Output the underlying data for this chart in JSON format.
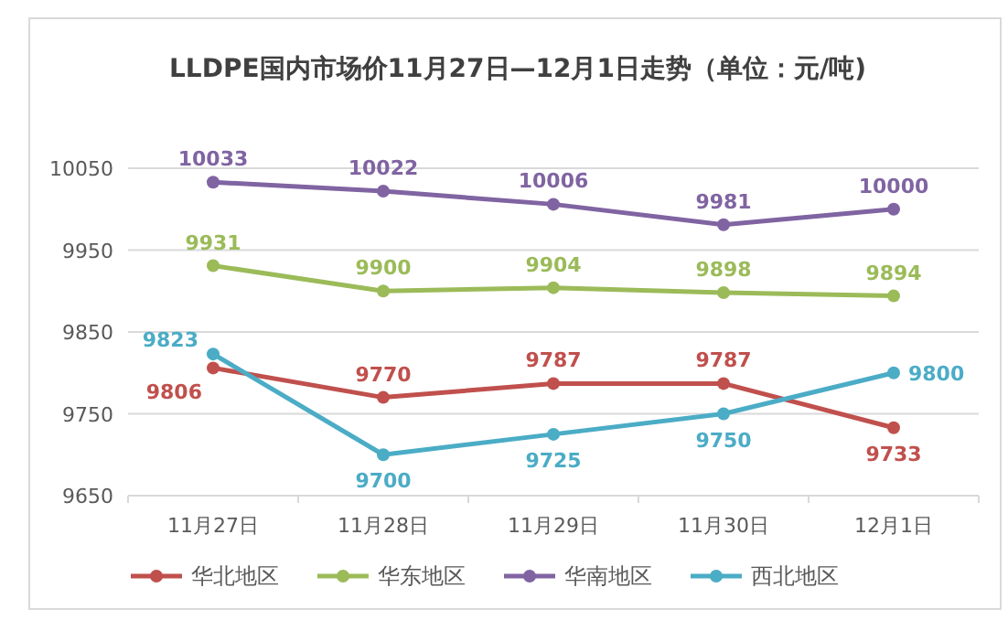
{
  "chart_data": {
    "type": "line",
    "title": "LLDPE国内市场价11月27日—12月1日走势（单位：元/吨)",
    "categories": [
      "11月27日",
      "11月28日",
      "11月29日",
      "11月30日",
      "12月1日"
    ],
    "series": [
      {
        "name": "华北地区",
        "color": "#c0504d",
        "values": [
          9806,
          9770,
          9787,
          9787,
          9733
        ]
      },
      {
        "name": "华东地区",
        "color": "#9bbb59",
        "values": [
          9931,
          9900,
          9904,
          9898,
          9894
        ]
      },
      {
        "name": "华南地区",
        "color": "#8064a2",
        "values": [
          10033,
          10022,
          10006,
          9981,
          10000
        ]
      },
      {
        "name": "西北地区",
        "color": "#4bacc6",
        "values": [
          9823,
          9700,
          9725,
          9750,
          9800
        ]
      }
    ],
    "ylim": [
      9650,
      10050
    ],
    "yticks": [
      9650,
      9750,
      9850,
      9950,
      10050
    ],
    "grid": "y",
    "legend": "bottom",
    "marker": "circle",
    "line_style": "solid",
    "data_labels": true
  }
}
